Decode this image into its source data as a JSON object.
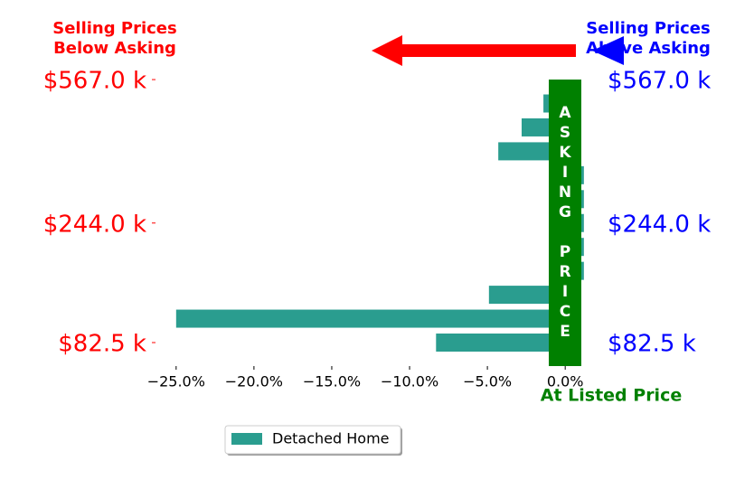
{
  "chart_data": {
    "type": "barh",
    "categories": [
      "$82.5 k",
      null,
      null,
      null,
      null,
      "$244.0 k",
      null,
      null,
      null,
      null,
      null,
      "$567.0 k"
    ],
    "series": [
      {
        "name": "Detached Home",
        "color": "#2a9d8f",
        "values": [
          -8.3,
          -25.0,
          -4.9,
          1.2,
          1.2,
          1.2,
          1.2,
          1.2,
          -4.3,
          -2.8,
          -1.4,
          0
        ]
      }
    ],
    "xlim": [
      -26.5,
      1.5
    ],
    "xticks": [
      {
        "value": -25,
        "label": "−25.0%"
      },
      {
        "value": -20,
        "label": "−20.0%"
      },
      {
        "value": -15,
        "label": "−15.0%"
      },
      {
        "value": -10,
        "label": "−10.0%"
      },
      {
        "value": -5,
        "label": "−5.0%"
      },
      {
        "value": 0,
        "label": "0.0%"
      }
    ],
    "below_asking": [
      "Selling Prices",
      "Below Asking"
    ],
    "above_asking": [
      "Selling Prices",
      "Above Asking"
    ],
    "asking_price": "ASKING PRICE",
    "listed_label": "At Listed Price"
  }
}
